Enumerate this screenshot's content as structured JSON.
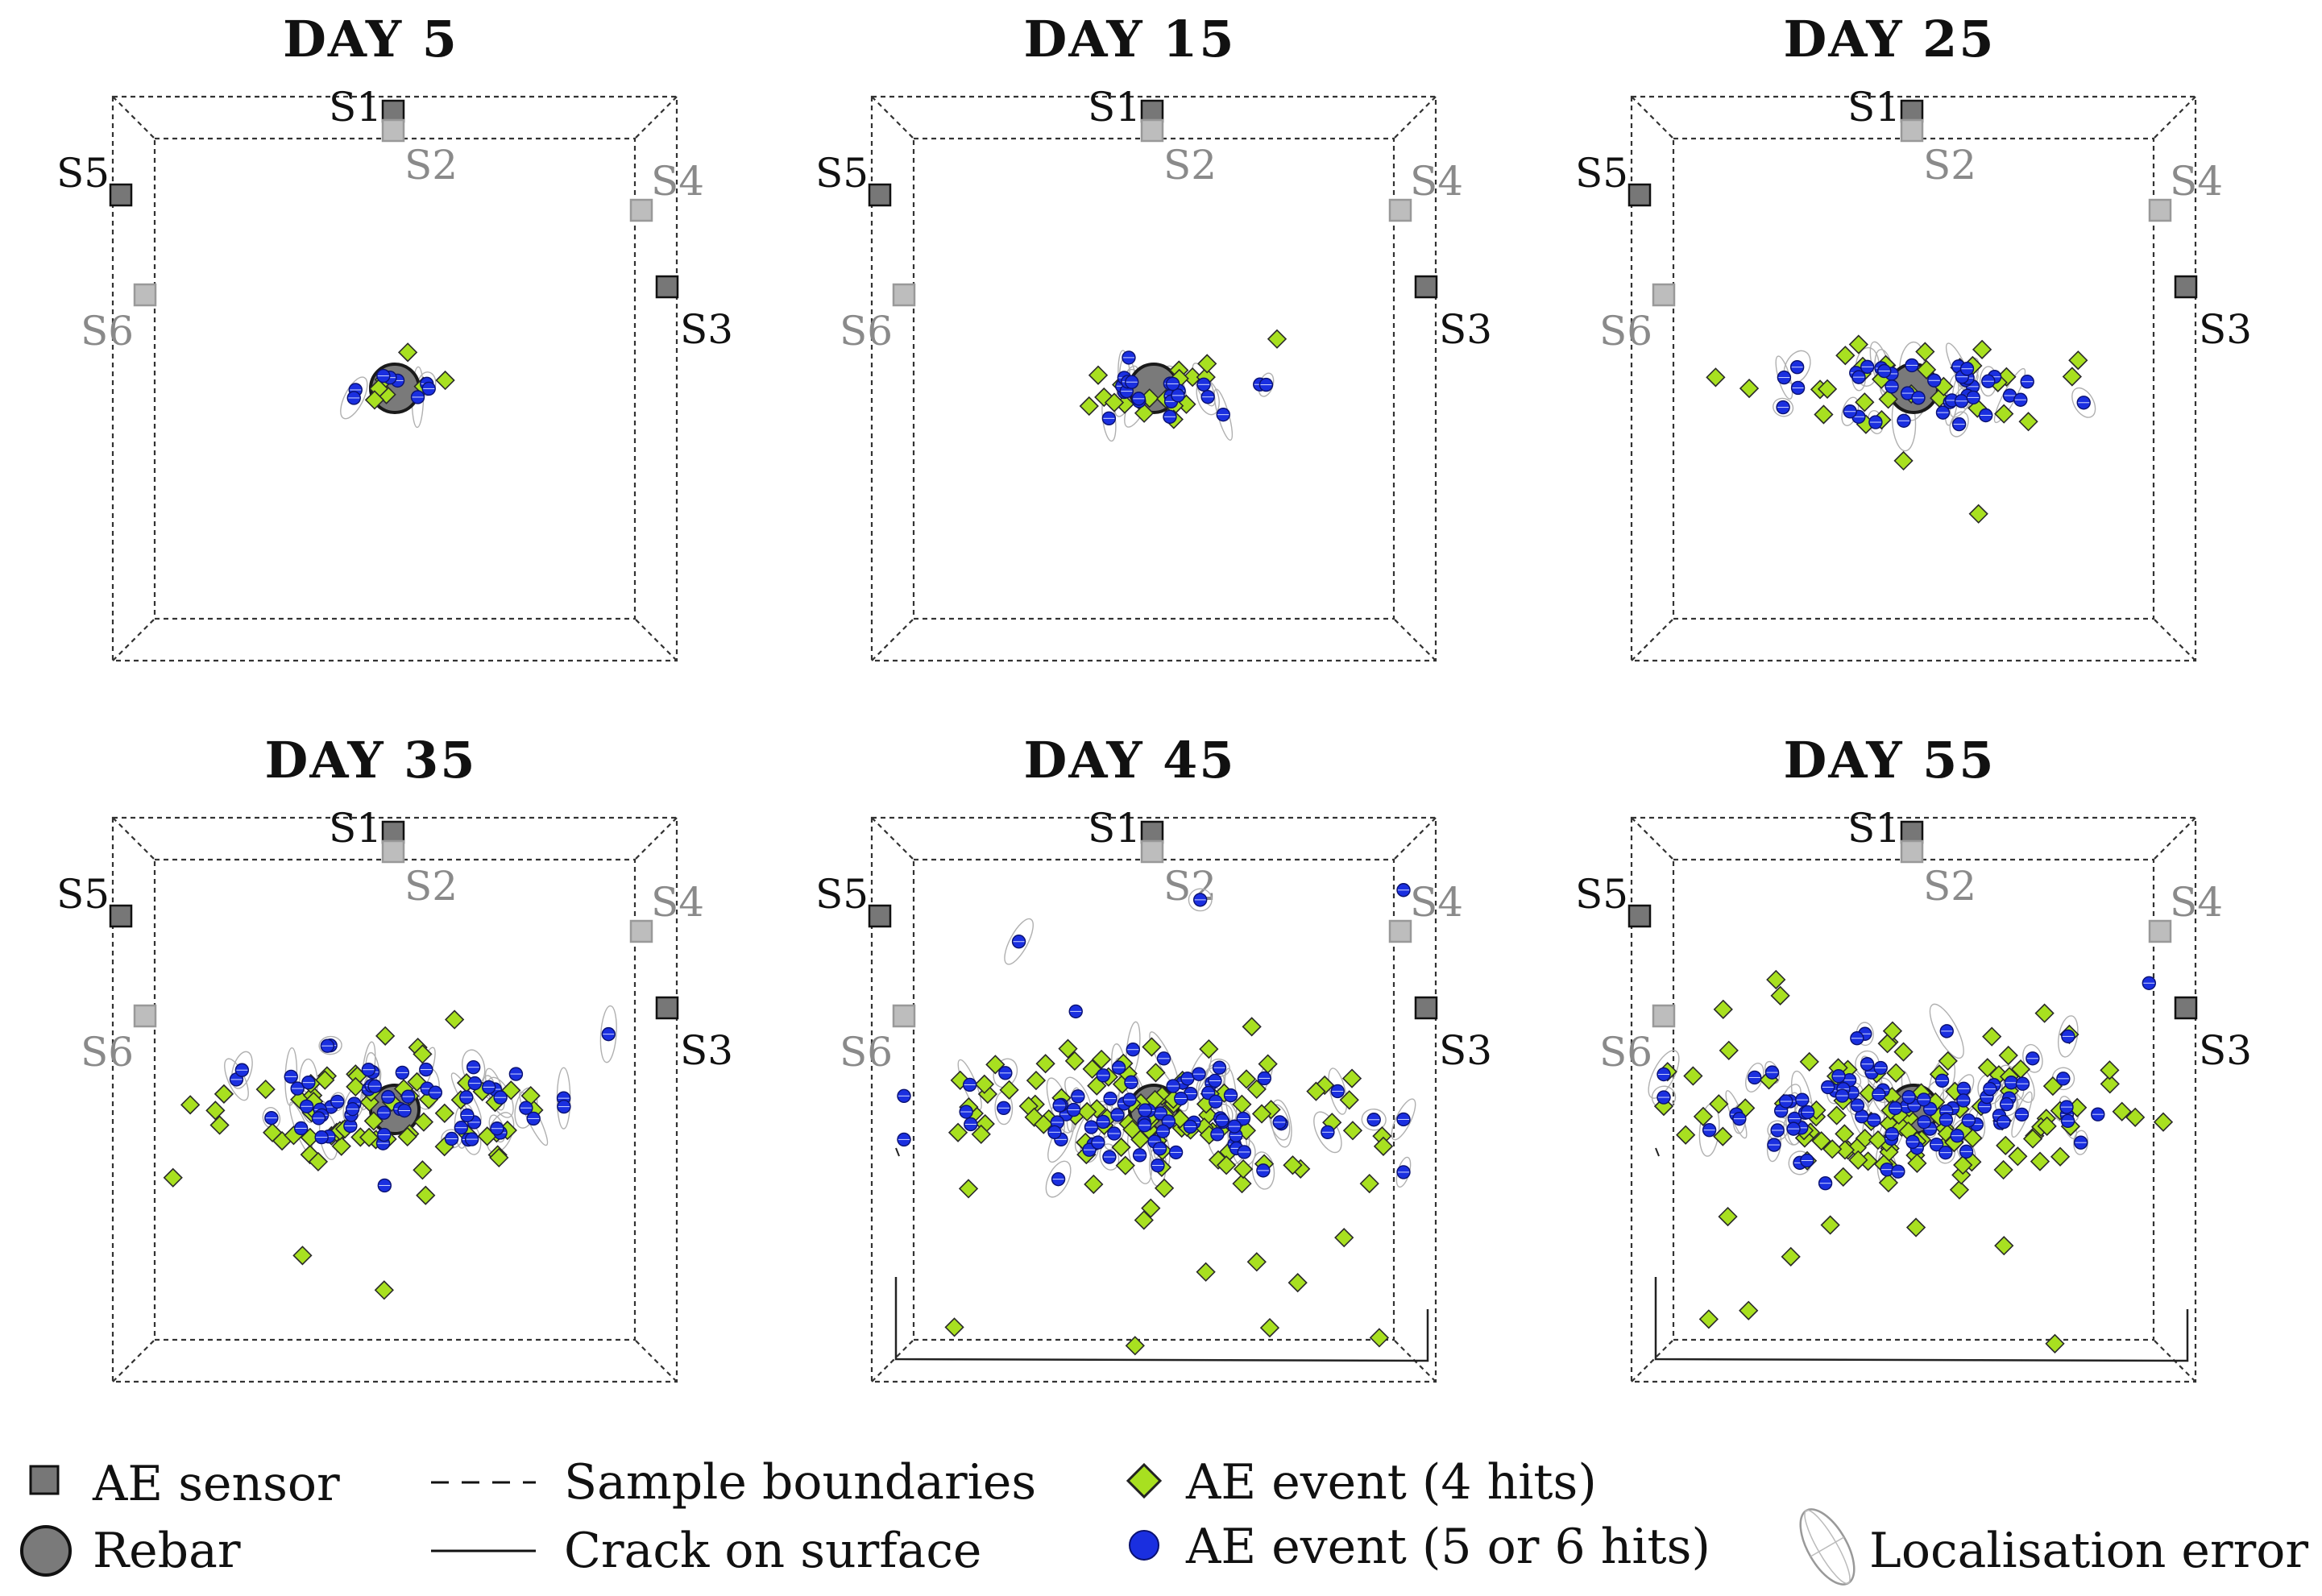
{
  "colors": {
    "sensor_front": "#777777",
    "sensor_back": "#bdbdbd",
    "label_front": "#111111",
    "label_back": "#8a8a8a",
    "rebar": "#7a7a7a",
    "ae4": "#a8e020",
    "ae56": "#1a2fe0",
    "ellipse": "#b0b0b0",
    "boundary": "#333333"
  },
  "panels": [
    {
      "title": "DAY 5",
      "events4": 6,
      "events56": 8,
      "extras4": 1,
      "extras56": 0,
      "spread": 0.32,
      "crack": false
    },
    {
      "title": "DAY 15",
      "events4": 16,
      "events56": 22,
      "extras4": 2,
      "extras56": 0,
      "spread": 0.55,
      "crack": false
    },
    {
      "title": "DAY 25",
      "events4": 30,
      "events56": 38,
      "extras4": 3,
      "extras56": 1,
      "spread": 0.75,
      "crack": false
    },
    {
      "title": "DAY 35",
      "events4": 60,
      "events56": 55,
      "extras4": 8,
      "extras56": 3,
      "spread": 1.0,
      "crack": false
    },
    {
      "title": "DAY 45",
      "events4": 95,
      "events56": 75,
      "extras4": 14,
      "extras56": 6,
      "spread": 1.15,
      "crack": true
    },
    {
      "title": "DAY 55",
      "events4": 105,
      "events56": 80,
      "extras4": 16,
      "extras56": 6,
      "spread": 1.15,
      "crack": true
    }
  ],
  "sensors": [
    {
      "label": "S1",
      "plane": "front"
    },
    {
      "label": "S2",
      "plane": "back"
    },
    {
      "label": "S3",
      "plane": "front"
    },
    {
      "label": "S4",
      "plane": "back"
    },
    {
      "label": "S5",
      "plane": "front"
    },
    {
      "label": "S6",
      "plane": "back"
    }
  ],
  "legend": {
    "ae_sensor": "AE sensor",
    "rebar": "Rebar",
    "sample_boundaries": "Sample boundaries",
    "crack_on_surface": "Crack on surface",
    "ae_event_4": "AE event (4 hits)",
    "ae_event_56": "AE event (5 or 6 hits)",
    "localisation_error": "Localisation error"
  }
}
